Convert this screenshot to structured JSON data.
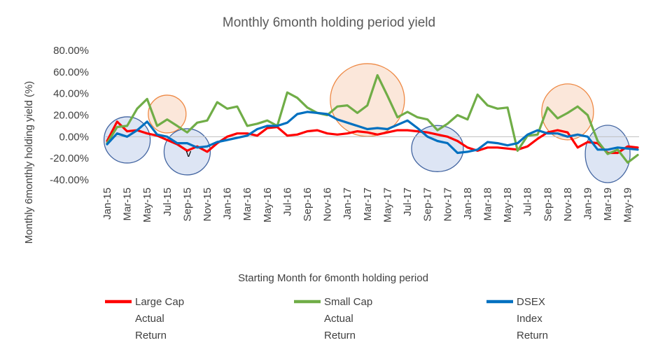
{
  "chart_data": {
    "type": "line",
    "title": "Monthly 6month holding period yield",
    "xlabel": "Starting Month for 6month holding period",
    "ylabel": "Monthly 6monthly holding yield (%)",
    "ylim": [
      -40,
      80
    ],
    "yticks": [
      "-40.00%",
      "-20.00%",
      "0.00%",
      "20.00%",
      "40.00%",
      "60.00%",
      "80.00%"
    ],
    "ytick_values": [
      -40,
      -20,
      0,
      20,
      40,
      60,
      80
    ],
    "x_tick_labels": [
      "Jan-15",
      "Mar-15",
      "May-15",
      "Jul-15",
      "Sep-15",
      "Nov-15",
      "Jan-16",
      "Mar-16",
      "May-16",
      "Jul-16",
      "Sep-16",
      "Nov-16",
      "Jan-17",
      "Mar-17",
      "May-17",
      "Jul-17",
      "Sep-17",
      "Nov-17",
      "Jan-18",
      "Mar-18",
      "May-18",
      "Jul-18",
      "Sep-18",
      "Nov-18",
      "Jan-19",
      "Mar-19",
      "May-19"
    ],
    "categories": [
      "Jan-15",
      "Feb-15",
      "Mar-15",
      "Apr-15",
      "May-15",
      "Jun-15",
      "Jul-15",
      "Aug-15",
      "Sep-15",
      "Oct-15",
      "Nov-15",
      "Dec-15",
      "Jan-16",
      "Feb-16",
      "Mar-16",
      "Apr-16",
      "May-16",
      "Jun-16",
      "Jul-16",
      "Aug-16",
      "Sep-16",
      "Oct-16",
      "Nov-16",
      "Dec-16",
      "Jan-17",
      "Feb-17",
      "Mar-17",
      "Apr-17",
      "May-17",
      "Jun-17",
      "Jul-17",
      "Aug-17",
      "Sep-17",
      "Oct-17",
      "Nov-17",
      "Dec-17",
      "Jan-18",
      "Feb-18",
      "Mar-18",
      "Apr-18",
      "May-18",
      "Jun-18",
      "Jul-18",
      "Aug-18",
      "Sep-18",
      "Oct-18",
      "Nov-18",
      "Dec-18",
      "Jan-19",
      "Feb-19",
      "Mar-19",
      "Apr-19",
      "May-19",
      "Jun-19"
    ],
    "series": [
      {
        "name": "Large Cap Actual Return",
        "color": "#FF0000",
        "values": [
          -4,
          14,
          5,
          6,
          3,
          1,
          -3,
          -7,
          -13,
          -9,
          -14,
          -6,
          0,
          3,
          3,
          1,
          8,
          9,
          1,
          2,
          5,
          6,
          3,
          2,
          3,
          5,
          4,
          2,
          4,
          6,
          6,
          5,
          4,
          2,
          0,
          -4,
          -10,
          -13,
          -10,
          -10,
          -11,
          -12,
          -9,
          -2,
          4,
          6,
          4,
          -10,
          -5,
          -6,
          -15,
          -15,
          -9,
          -10
        ]
      },
      {
        "name": "Small Cap Actual Return",
        "color": "#70AD47",
        "values": [
          -6,
          9,
          10,
          26,
          35,
          10,
          16,
          10,
          4,
          13,
          15,
          32,
          26,
          28,
          10,
          12,
          15,
          10,
          41,
          36,
          27,
          22,
          20,
          28,
          29,
          22,
          29,
          57,
          38,
          18,
          23,
          18,
          16,
          6,
          12,
          20,
          16,
          39,
          29,
          26,
          27,
          -13,
          1,
          2,
          27,
          17,
          22,
          28,
          20,
          -4,
          -16,
          -12,
          -24,
          -17
        ]
      },
      {
        "name": "DSEX Index Return",
        "color": "#0070C0",
        "values": [
          -7,
          3,
          0,
          6,
          14,
          2,
          0,
          -6,
          -6,
          -10,
          -9,
          -5,
          -3,
          -1,
          1,
          7,
          10,
          10,
          13,
          21,
          23,
          22,
          21,
          16,
          13,
          10,
          7,
          8,
          7,
          11,
          15,
          8,
          0,
          -4,
          -6,
          -15,
          -14,
          -12,
          -5,
          -6,
          -8,
          -6,
          2,
          6,
          3,
          3,
          0,
          2,
          0,
          -12,
          -12,
          -10,
          -11,
          -12
        ]
      }
    ],
    "annotations": [
      {
        "text": "v",
        "category": "Sep-15",
        "value": -16
      }
    ],
    "highlight_circles": [
      {
        "shape": "circle",
        "color": "blue",
        "center_category": "Mar-15",
        "center_value": -3
      },
      {
        "shape": "circle",
        "color": "orange",
        "center_category": "Jul-15",
        "center_value": 21
      },
      {
        "shape": "circle",
        "color": "blue",
        "center_category": "Sep-15",
        "center_value": -14
      },
      {
        "shape": "circle",
        "color": "orange",
        "center_category": "Mar-17",
        "center_value": 34
      },
      {
        "shape": "circle",
        "color": "blue",
        "center_category": "Oct-17",
        "center_value": -11
      },
      {
        "shape": "circle",
        "color": "orange",
        "center_category": "Nov-18",
        "center_value": 23
      },
      {
        "shape": "circle",
        "color": "blue",
        "center_category": "Mar-19",
        "center_value": -16
      }
    ],
    "legend": {
      "position": "bottom",
      "items": [
        {
          "lines": [
            "Large Cap",
            "Actual",
            "Return"
          ],
          "color": "#FF0000"
        },
        {
          "lines": [
            "Small Cap",
            "Actual",
            "Return"
          ],
          "color": "#70AD47"
        },
        {
          "lines": [
            "DSEX",
            "Index",
            "Return"
          ],
          "color": "#0070C0"
        }
      ]
    },
    "grid": false
  }
}
